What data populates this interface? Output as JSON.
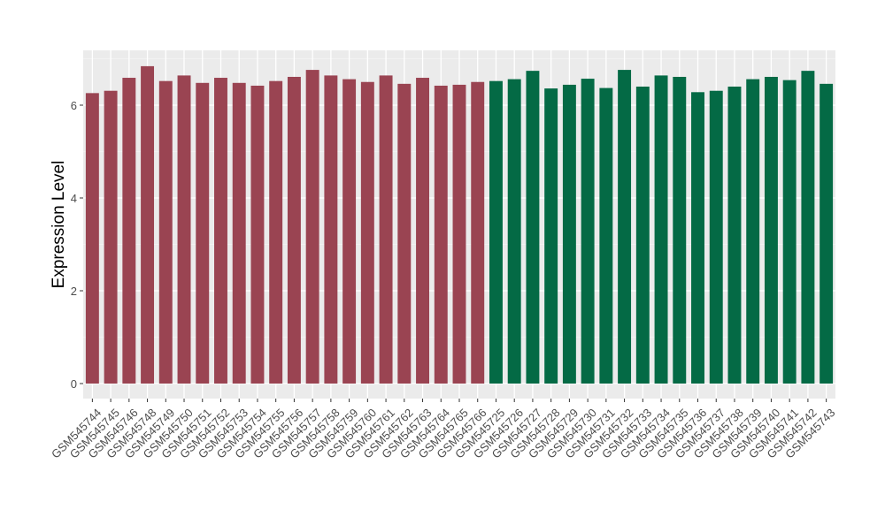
{
  "chart_data": {
    "type": "bar",
    "title": "",
    "xlabel": "",
    "ylabel": "Expression Level",
    "ylim": [
      0,
      7.4
    ],
    "yticks": [
      0,
      2,
      4,
      6
    ],
    "grid": true,
    "legend": "none",
    "background": "#ebebeb",
    "categories": [
      "GSM545744",
      "GSM545745",
      "GSM545746",
      "GSM545748",
      "GSM545749",
      "GSM545750",
      "GSM545751",
      "GSM545752",
      "GSM545753",
      "GSM545754",
      "GSM545755",
      "GSM545756",
      "GSM545757",
      "GSM545758",
      "GSM545759",
      "GSM545760",
      "GSM545761",
      "GSM545762",
      "GSM545763",
      "GSM545764",
      "GSM545765",
      "GSM545766",
      "GSM545725",
      "GSM545726",
      "GSM545727",
      "GSM545728",
      "GSM545729",
      "GSM545730",
      "GSM545731",
      "GSM545732",
      "GSM545733",
      "GSM545734",
      "GSM545735",
      "GSM545736",
      "GSM545737",
      "GSM545738",
      "GSM545739",
      "GSM545740",
      "GSM545741",
      "GSM545742",
      "GSM545743"
    ],
    "values": [
      6.26,
      6.31,
      6.59,
      6.84,
      6.52,
      6.64,
      6.48,
      6.59,
      6.48,
      6.42,
      6.52,
      6.61,
      6.76,
      6.64,
      6.56,
      6.5,
      6.64,
      6.46,
      6.59,
      6.42,
      6.44,
      6.5,
      6.52,
      6.56,
      6.74,
      6.36,
      6.44,
      6.57,
      6.37,
      6.76,
      6.4,
      6.64,
      6.61,
      6.28,
      6.31,
      6.4,
      6.56,
      6.61,
      6.54,
      6.74,
      6.46
    ],
    "colors": [
      "#9a4452",
      "#9a4452",
      "#9a4452",
      "#9a4452",
      "#9a4452",
      "#9a4452",
      "#9a4452",
      "#9a4452",
      "#9a4452",
      "#9a4452",
      "#9a4452",
      "#9a4452",
      "#9a4452",
      "#9a4452",
      "#9a4452",
      "#9a4452",
      "#9a4452",
      "#9a4452",
      "#9a4452",
      "#9a4452",
      "#9a4452",
      "#9a4452",
      "#046a45",
      "#046a45",
      "#046a45",
      "#046a45",
      "#046a45",
      "#046a45",
      "#046a45",
      "#046a45",
      "#046a45",
      "#046a45",
      "#046a45",
      "#046a45",
      "#046a45",
      "#046a45",
      "#046a45",
      "#046a45",
      "#046a45",
      "#046a45",
      "#046a45"
    ]
  }
}
